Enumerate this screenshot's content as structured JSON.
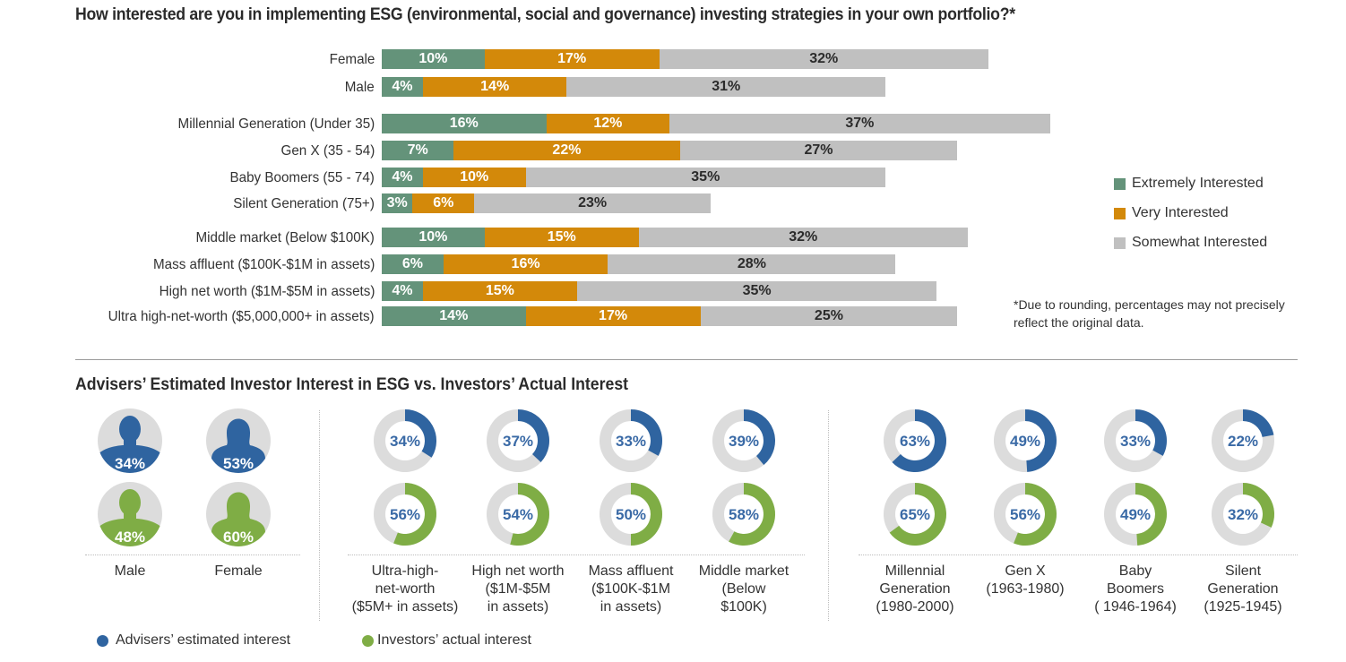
{
  "colors": {
    "extremely": "#64937a",
    "very": "#d3890a",
    "somewhat": "#c0c0c0",
    "advisers": "#2f64a0",
    "investors": "#7fad45",
    "donut_track": "#dcdcdc",
    "donut_text": "#3a6aa6"
  },
  "chart_data": [
    {
      "type": "bar",
      "orientation": "horizontal",
      "stacked": true,
      "title": "How interested are you in implementing ESG (environmental, social and governance) investing strategies in your own portfolio?*",
      "categories": [
        "Female",
        "Male",
        "Millennial Generation (Under 35)",
        "Gen X (35 - 54)",
        "Baby Boomers (55 - 74)",
        "Silent Generation (75+)",
        "Middle market (Below $100K)",
        "Mass affluent ($100K-$1M in assets)",
        "High net worth ($1M-$5M in assets)",
        "Ultra high-net-worth ($5,000,000+ in assets)"
      ],
      "groups": [
        [
          0,
          1
        ],
        [
          2,
          3,
          4,
          5
        ],
        [
          6,
          7,
          8,
          9
        ]
      ],
      "series": [
        {
          "name": "Extremely Interested",
          "values": [
            10,
            4,
            16,
            7,
            4,
            3,
            10,
            6,
            4,
            14
          ]
        },
        {
          "name": "Very Interested",
          "values": [
            17,
            14,
            12,
            22,
            10,
            6,
            15,
            16,
            15,
            17
          ]
        },
        {
          "name": "Somewhat Interested",
          "values": [
            32,
            31,
            37,
            27,
            35,
            23,
            32,
            28,
            35,
            25
          ]
        }
      ],
      "value_format": "{v}%",
      "legend": [
        "Extremely Interested",
        "Very Interested",
        "Somewhat Interested"
      ],
      "legend_position": "right",
      "footnote": "*Due to rounding, percentages may not precisely reflect the original data.",
      "grid": false
    },
    {
      "type": "pie",
      "variant": "donut",
      "title": "Advisers’ Estimated Investor Interest in ESG  vs. Investors’ Actual Interest",
      "groups": [
        {
          "name": "gender",
          "style": "person-icon",
          "categories": [
            {
              "label": "Male",
              "advisers": 34,
              "investors": 48
            },
            {
              "label": "Female",
              "advisers": 53,
              "investors": 60
            }
          ]
        },
        {
          "name": "wealth",
          "style": "donut",
          "categories": [
            {
              "label": [
                "Ultra-high-",
                "net-worth",
                "($5M+ in assets)"
              ],
              "advisers": 34,
              "investors": 56
            },
            {
              "label": [
                "High net worth",
                "($1M-$5M",
                "in assets)"
              ],
              "advisers": 37,
              "investors": 54
            },
            {
              "label": [
                "Mass affluent",
                "($100K-$1M",
                "in assets)"
              ],
              "advisers": 33,
              "investors": 50
            },
            {
              "label": [
                "Middle market",
                "(Below",
                "$100K)"
              ],
              "advisers": 39,
              "investors": 58
            }
          ]
        },
        {
          "name": "generation",
          "style": "donut",
          "categories": [
            {
              "label": [
                "Millennial",
                "Generation",
                "(1980-2000)"
              ],
              "advisers": 63,
              "investors": 65
            },
            {
              "label": [
                "Gen X",
                "(1963-1980)"
              ],
              "advisers": 49,
              "investors": 56
            },
            {
              "label": [
                "Baby",
                "Boomers",
                "( 1946-1964)"
              ],
              "advisers": 33,
              "investors": 49
            },
            {
              "label": [
                "Silent",
                "Generation",
                "(1925-1945)"
              ],
              "advisers": 22,
              "investors": 32
            }
          ]
        }
      ],
      "legend": [
        {
          "name": "Advisers’ estimated interest",
          "key": "advisers"
        },
        {
          "name": "Investors’ actual interest",
          "key": "investors"
        }
      ],
      "legend_position": "bottom-left",
      "value_format": "{v}%"
    }
  ]
}
